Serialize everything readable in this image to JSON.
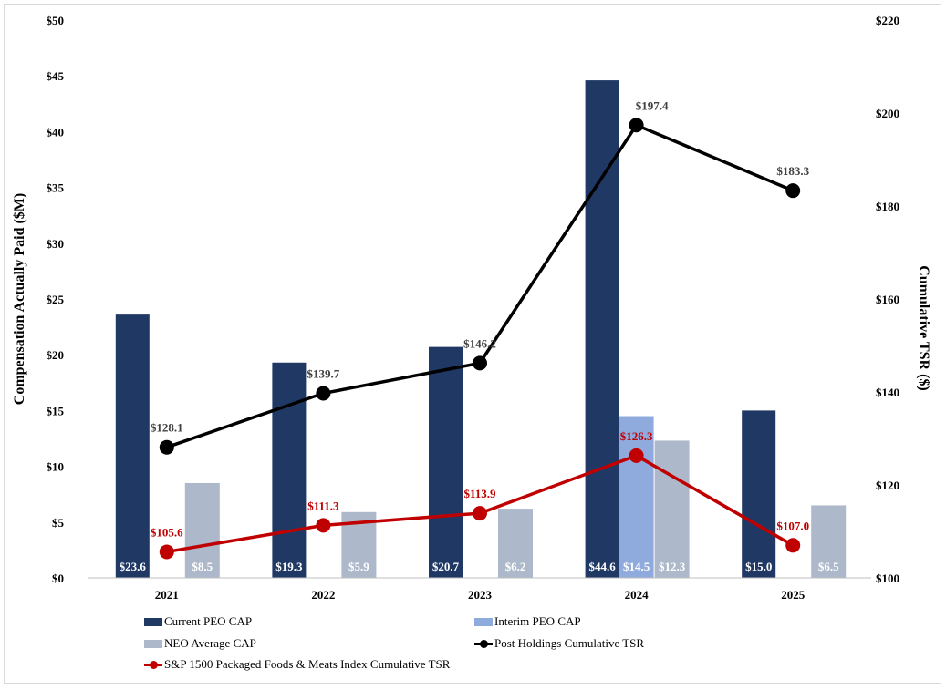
{
  "chart_data": {
    "type": "bar+line",
    "categories": [
      "2021",
      "2022",
      "2023",
      "2024",
      "2025"
    ],
    "y_left": {
      "label": "Compensation Actually Paid ($M)",
      "range": [
        0,
        50
      ],
      "ticks": [
        "$0",
        "$5",
        "$10",
        "$15",
        "$20",
        "$25",
        "$30",
        "$35",
        "$40",
        "$45",
        "$50"
      ]
    },
    "y_right": {
      "label": "Cumulative TSR ($)",
      "range": [
        100,
        220
      ],
      "ticks": [
        "$100",
        "$120",
        "$140",
        "$160",
        "$180",
        "$200",
        "$220"
      ]
    },
    "grid": false,
    "legend_position": "bottom",
    "bar_series": [
      {
        "name": "Current PEO CAP",
        "color": "#203864",
        "values": [
          23.6,
          19.3,
          20.7,
          44.6,
          15.0
        ],
        "labels": [
          "$23.6",
          "$19.3",
          "$20.7",
          "$44.6",
          "$15.0"
        ]
      },
      {
        "name": "Interim PEO CAP",
        "color": "#8faadc",
        "values": [
          null,
          null,
          null,
          14.5,
          null
        ],
        "labels": [
          "",
          "",
          "",
          "$14.5",
          ""
        ]
      },
      {
        "name": "NEO Average CAP",
        "color": "#adb9ca",
        "values": [
          8.5,
          5.9,
          6.2,
          12.3,
          6.5
        ],
        "labels": [
          "$8.5",
          "$5.9",
          "$6.2",
          "$12.3",
          "$6.5"
        ]
      }
    ],
    "line_series": [
      {
        "name": "Post Holdings Cumulative TSR",
        "color": "#000000",
        "axis": "right",
        "values": [
          128.1,
          139.7,
          146.2,
          197.4,
          183.3
        ],
        "labels": [
          "$128.1",
          "$139.7",
          "$146.2",
          "$197.4",
          "$183.3"
        ]
      },
      {
        "name": "S&P 1500 Packaged Foods & Meats Index Cumulative TSR",
        "color": "#c00000",
        "axis": "right",
        "values": [
          105.6,
          111.3,
          113.9,
          126.3,
          107.0
        ],
        "labels": [
          "$105.6",
          "$111.3",
          "$113.9",
          "$126.3",
          "$107.0"
        ]
      }
    ]
  }
}
